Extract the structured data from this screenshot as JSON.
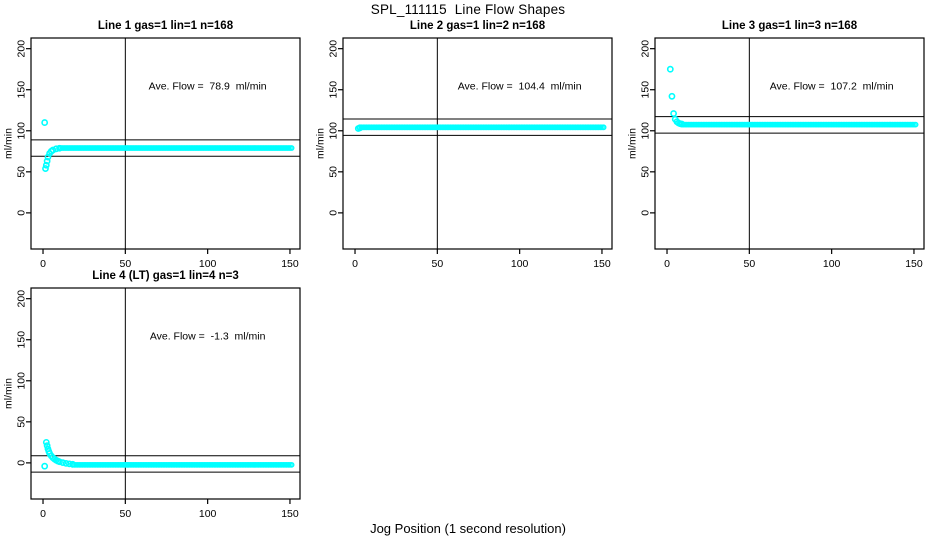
{
  "figure": {
    "title": "SPL_111115  Line Flow Shapes",
    "shared_xlabel": "Jog Position (1 second resolution)"
  },
  "colors": {
    "points": "#00FFFF",
    "axis": "#000000",
    "background": "#FFFFFF"
  },
  "chart_data": [
    {
      "type": "scatter",
      "title": "Line 1 gas=1 lin=1 n=168",
      "annotation": "Ave. Flow =  78.9  ml/min",
      "ave_flow_ml_min": 78.9,
      "ylabel": "ml/min",
      "xlim": [
        -7.3,
        156.1
      ],
      "ylim": [
        -44,
        213
      ],
      "x_ticks": [
        0,
        50,
        100,
        150
      ],
      "y_ticks": [
        0,
        50,
        100,
        150,
        200
      ],
      "vline_x": 50,
      "hlines": [
        88.9,
        68.9
      ],
      "annotation_pos": [
        100,
        150
      ],
      "transient_points": [
        [
          1,
          110
        ],
        [
          1.5,
          54
        ],
        [
          2,
          58
        ],
        [
          2.5,
          63
        ],
        [
          3,
          68
        ],
        [
          4,
          72.5
        ],
        [
          5,
          75
        ],
        [
          6,
          76.5
        ],
        [
          8,
          78
        ],
        [
          10,
          78.7
        ]
      ],
      "plateau": {
        "x_start": 10,
        "x_end": 151,
        "y": 79,
        "step": 1
      }
    },
    {
      "type": "scatter",
      "title": "Line 2 gas=1 lin=2 n=168",
      "annotation": "Ave. Flow =  104.4  ml/min",
      "ave_flow_ml_min": 104.4,
      "ylabel": "ml/min",
      "xlim": [
        -7.3,
        156.1
      ],
      "ylim": [
        -44,
        213
      ],
      "x_ticks": [
        0,
        50,
        100,
        150
      ],
      "y_ticks": [
        0,
        50,
        100,
        150,
        200
      ],
      "vline_x": 50,
      "hlines": [
        114.4,
        94.4
      ],
      "annotation_pos": [
        100,
        150
      ],
      "transient_points": [
        [
          2,
          102.8
        ],
        [
          3,
          103.6
        ]
      ],
      "plateau": {
        "x_start": 3,
        "x_end": 151,
        "y": 104.2,
        "step": 1
      }
    },
    {
      "type": "scatter",
      "title": "Line 3 gas=1 lin=3 n=168",
      "annotation": "Ave. Flow =  107.2  ml/min",
      "ave_flow_ml_min": 107.2,
      "ylabel": "ml/min",
      "xlim": [
        -7.3,
        156.1
      ],
      "ylim": [
        -44,
        213
      ],
      "x_ticks": [
        0,
        50,
        100,
        150
      ],
      "y_ticks": [
        0,
        50,
        100,
        150,
        200
      ],
      "vline_x": 50,
      "hlines": [
        117.2,
        97.2
      ],
      "annotation_pos": [
        100,
        150
      ],
      "transient_points": [
        [
          2,
          175
        ],
        [
          3,
          142
        ],
        [
          4,
          121
        ],
        [
          5,
          114
        ],
        [
          6,
          111
        ],
        [
          7,
          109.5
        ],
        [
          8,
          108.6
        ],
        [
          9,
          108.2
        ]
      ],
      "plateau": {
        "x_start": 10,
        "x_end": 151,
        "y": 107.5,
        "step": 1
      }
    },
    {
      "type": "scatter",
      "title": "Line 4 (LT) gas=1 lin=4 n=3",
      "annotation": "Ave. Flow =  -1.3  ml/min",
      "ave_flow_ml_min": -1.3,
      "ylabel": "ml/min",
      "xlim": [
        -7.3,
        156.1
      ],
      "ylim": [
        -44,
        213
      ],
      "x_ticks": [
        0,
        50,
        100,
        150
      ],
      "y_ticks": [
        0,
        50,
        100,
        150,
        200
      ],
      "vline_x": 50,
      "hlines": [
        8.7,
        -11.3
      ],
      "annotation_pos": [
        100,
        150
      ],
      "transient_points": [
        [
          1,
          -4
        ],
        [
          2,
          25
        ],
        [
          2.5,
          21
        ],
        [
          3,
          17
        ],
        [
          3.5,
          14
        ],
        [
          4,
          11.5
        ],
        [
          5,
          8.5
        ],
        [
          6,
          6.3
        ],
        [
          7,
          4.6
        ],
        [
          8,
          3.2
        ],
        [
          9,
          2.2
        ],
        [
          10,
          1.4
        ],
        [
          12,
          0.3
        ],
        [
          14,
          -0.6
        ],
        [
          16,
          -1.2
        ],
        [
          18,
          -1.7
        ]
      ],
      "plateau": {
        "x_start": 18,
        "x_end": 151,
        "y": -2.4,
        "step": 1
      }
    }
  ]
}
